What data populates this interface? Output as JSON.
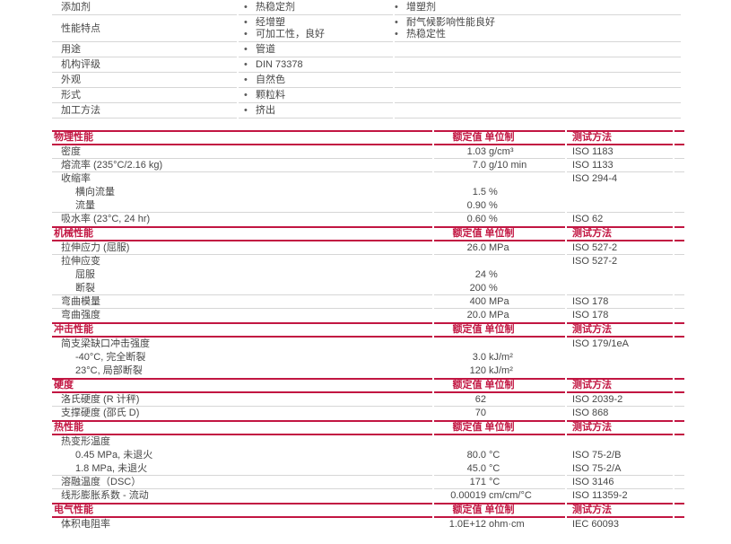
{
  "colors": {
    "accent": "#C21642",
    "separator": "#d6d6d6",
    "text": "#474747"
  },
  "icons": {
    "bullet": "•"
  },
  "headers": {
    "rating": "额定值 单位制",
    "method": "测试方法"
  },
  "attributes": {
    "rows": [
      {
        "label": "添加剂",
        "col1": [
          "热稳定剂"
        ],
        "col2": [
          "增塑剂"
        ]
      },
      {
        "label": "性能特点",
        "col1": [
          "经增塑",
          "可加工性，良好"
        ],
        "col2": [
          "耐气候影响性能良好",
          "热稳定性"
        ]
      },
      {
        "label": "用途",
        "col1": [
          "管道"
        ],
        "col2": []
      },
      {
        "label": "机构评级",
        "col1": [
          "DIN 73378"
        ],
        "col2": []
      },
      {
        "label": "外观",
        "col1": [
          "自然色"
        ],
        "col2": []
      },
      {
        "label": "形式",
        "col1": [
          "颗粒料"
        ],
        "col2": []
      },
      {
        "label": "加工方法",
        "col1": [
          "挤出"
        ],
        "col2": []
      }
    ]
  },
  "sections": [
    {
      "title": "物理性能",
      "rows": [
        {
          "label": "密度",
          "value": "1.03",
          "unit": "g/cm³",
          "method": "ISO 1183"
        },
        {
          "label": "熔流率 (235°C/2.16 kg)",
          "value": "7.0",
          "unit": "g/10 min",
          "method": "ISO 1133"
        },
        {
          "label": "收缩率",
          "value": "",
          "unit": "",
          "method": "ISO 294-4"
        },
        {
          "label": "横向流量",
          "value": "1.5",
          "unit": "%",
          "method": ""
        },
        {
          "label": "流量",
          "value": "0.90",
          "unit": "%",
          "method": ""
        },
        {
          "label": "吸水率 (23°C, 24 hr)",
          "value": "0.60",
          "unit": "%",
          "method": "ISO 62"
        }
      ]
    },
    {
      "title": "机械性能",
      "rows": [
        {
          "label": "拉伸应力 (屈服)",
          "value": "26.0",
          "unit": "MPa",
          "method": "ISO 527-2"
        },
        {
          "label": "拉伸应变",
          "value": "",
          "unit": "",
          "method": "ISO 527-2"
        },
        {
          "label": "屈服",
          "value": "24",
          "unit": "%",
          "method": ""
        },
        {
          "label": "断裂",
          "value": "200",
          "unit": "%",
          "method": ""
        },
        {
          "label": "弯曲模量",
          "value": "400",
          "unit": "MPa",
          "method": "ISO 178"
        },
        {
          "label": "弯曲强度",
          "value": "20.0",
          "unit": "MPa",
          "method": "ISO 178"
        }
      ]
    },
    {
      "title": "冲击性能",
      "rows": [
        {
          "label": "简支梁缺口冲击强度",
          "value": "",
          "unit": "",
          "method": "ISO 179/1eA"
        },
        {
          "label": "-40°C, 完全断裂",
          "value": "3.0",
          "unit": "kJ/m²",
          "method": ""
        },
        {
          "label": "23°C, 局部断裂",
          "value": "120",
          "unit": "kJ/m²",
          "method": ""
        }
      ]
    },
    {
      "title": "硬度",
      "rows": [
        {
          "label": "洛氏硬度 (R 计秤)",
          "value": "62",
          "unit": "",
          "method": "ISO 2039-2"
        },
        {
          "label": "支撑硬度 (邵氏 D)",
          "value": "70",
          "unit": "",
          "method": "ISO 868"
        }
      ]
    },
    {
      "title": "热性能",
      "rows": [
        {
          "label": "热变形温度",
          "value": "",
          "unit": "",
          "method": ""
        },
        {
          "label": "0.45 MPa, 未退火",
          "value": "80.0",
          "unit": "°C",
          "method": "ISO 75-2/B"
        },
        {
          "label": "1.8 MPa, 未退火",
          "value": "45.0",
          "unit": "°C",
          "method": "ISO 75-2/A"
        },
        {
          "label": "溶融温度（DSC）",
          "value": "171",
          "unit": "°C",
          "method": "ISO 3146"
        },
        {
          "label": "线形膨胀系数 - 流动",
          "value": "0.00019",
          "unit": "cm/cm/°C",
          "method": "ISO 11359-2"
        }
      ]
    },
    {
      "title": "电气性能",
      "rows": [
        {
          "label": "体积电阻率",
          "value": "1.0E+12",
          "unit": "ohm·cm",
          "method": "IEC 60093"
        }
      ]
    }
  ]
}
